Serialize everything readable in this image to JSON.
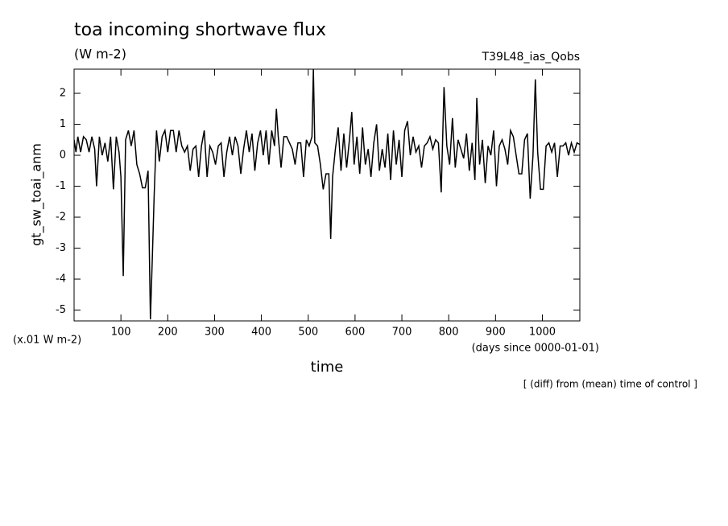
{
  "chart_data": {
    "type": "line",
    "title": "toa incoming shortwave flux",
    "subtitle": "(W m-2)",
    "run_label": "T39L48_ias_Qobs",
    "y_label": "gt_sw_toai_anm",
    "y_units": "(x.01 W m-2)",
    "x_label": "time",
    "x_units": "(days since 0000-01-01)",
    "footnote": "[ (diff) from (mean) time of control ]",
    "color": "#000000",
    "xlim": [
      0,
      1080
    ],
    "ylim": [
      -5.35,
      2.78
    ],
    "xticks": [
      100,
      200,
      300,
      400,
      500,
      600,
      700,
      800,
      900,
      1000
    ],
    "yticks": [
      -5,
      -4,
      -3,
      -2,
      -1,
      0,
      1,
      2
    ],
    "x": [
      0,
      4,
      8,
      14,
      20,
      26,
      32,
      38,
      44,
      48,
      54,
      60,
      66,
      72,
      78,
      84,
      90,
      96,
      100,
      105,
      110,
      116,
      122,
      128,
      134,
      140,
      146,
      152,
      158,
      163,
      167,
      171,
      176,
      182,
      188,
      194,
      200,
      206,
      212,
      218,
      224,
      230,
      236,
      242,
      248,
      254,
      260,
      266,
      272,
      278,
      284,
      290,
      296,
      302,
      308,
      314,
      320,
      326,
      332,
      338,
      344,
      350,
      356,
      362,
      368,
      374,
      380,
      386,
      392,
      398,
      404,
      410,
      416,
      422,
      428,
      432,
      436,
      442,
      448,
      454,
      460,
      466,
      472,
      478,
      484,
      490,
      496,
      502,
      508,
      511,
      514,
      520,
      526,
      532,
      538,
      544,
      548,
      552,
      558,
      564,
      570,
      576,
      582,
      588,
      593,
      598,
      604,
      610,
      616,
      622,
      628,
      634,
      640,
      646,
      652,
      658,
      664,
      670,
      676,
      682,
      688,
      694,
      700,
      706,
      712,
      718,
      724,
      730,
      736,
      742,
      748,
      754,
      760,
      766,
      772,
      778,
      784,
      790,
      796,
      802,
      808,
      814,
      820,
      826,
      832,
      838,
      844,
      850,
      856,
      860,
      866,
      872,
      878,
      884,
      890,
      896,
      902,
      908,
      914,
      920,
      926,
      932,
      938,
      944,
      950,
      956,
      962,
      968,
      974,
      980,
      985,
      990,
      996,
      1002,
      1008,
      1014,
      1020,
      1026,
      1032,
      1038,
      1044,
      1050,
      1056,
      1062,
      1068,
      1074,
      1080
    ],
    "values": [
      0.5,
      0.1,
      0.6,
      0.1,
      0.6,
      0.5,
      0.1,
      0.6,
      0.2,
      -1.0,
      0.6,
      0.0,
      0.4,
      -0.2,
      0.6,
      -1.1,
      0.6,
      0.1,
      -0.7,
      -3.9,
      0.5,
      0.8,
      0.3,
      0.8,
      -0.3,
      -0.6,
      -1.05,
      -1.05,
      -0.5,
      -5.3,
      -3.35,
      -1.3,
      0.8,
      -0.2,
      0.6,
      0.8,
      0.1,
      0.8,
      0.8,
      0.1,
      0.8,
      0.3,
      0.1,
      0.3,
      -0.5,
      0.2,
      0.3,
      -0.7,
      0.3,
      0.8,
      -0.7,
      0.3,
      0.1,
      -0.3,
      0.3,
      0.4,
      -0.7,
      0.1,
      0.6,
      0.0,
      0.6,
      0.3,
      -0.6,
      0.2,
      0.8,
      0.1,
      0.7,
      -0.5,
      0.4,
      0.8,
      0.0,
      0.8,
      -0.3,
      0.8,
      0.3,
      1.5,
      0.6,
      -0.4,
      0.6,
      0.6,
      0.4,
      0.2,
      -0.3,
      0.4,
      0.4,
      -0.7,
      0.5,
      0.3,
      0.6,
      2.78,
      0.4,
      0.3,
      -0.3,
      -1.1,
      -0.6,
      -0.6,
      -2.7,
      -0.7,
      0.2,
      0.9,
      -0.5,
      0.7,
      -0.4,
      0.5,
      1.4,
      -0.3,
      0.6,
      -0.6,
      0.9,
      -0.3,
      0.2,
      -0.7,
      0.4,
      1.0,
      -0.5,
      0.2,
      -0.4,
      0.7,
      -0.8,
      0.8,
      -0.3,
      0.5,
      -0.7,
      0.8,
      1.1,
      0.0,
      0.6,
      0.1,
      0.3,
      -0.4,
      0.3,
      0.4,
      0.6,
      0.2,
      0.5,
      0.4,
      -1.2,
      2.2,
      0.3,
      -0.3,
      1.2,
      -0.4,
      0.5,
      0.2,
      -0.1,
      0.7,
      -0.5,
      0.4,
      -0.8,
      1.85,
      -0.3,
      0.5,
      -0.9,
      0.3,
      0.0,
      0.8,
      -1.0,
      0.3,
      0.5,
      0.2,
      -0.3,
      0.8,
      0.6,
      0.0,
      -0.6,
      -0.6,
      0.5,
      0.7,
      -1.4,
      0.0,
      2.45,
      0.1,
      -1.1,
      -1.1,
      0.3,
      0.4,
      0.1,
      0.4,
      -0.7,
      0.3,
      0.3,
      0.4,
      0.0,
      0.4,
      0.1,
      0.4,
      0.35
    ]
  }
}
